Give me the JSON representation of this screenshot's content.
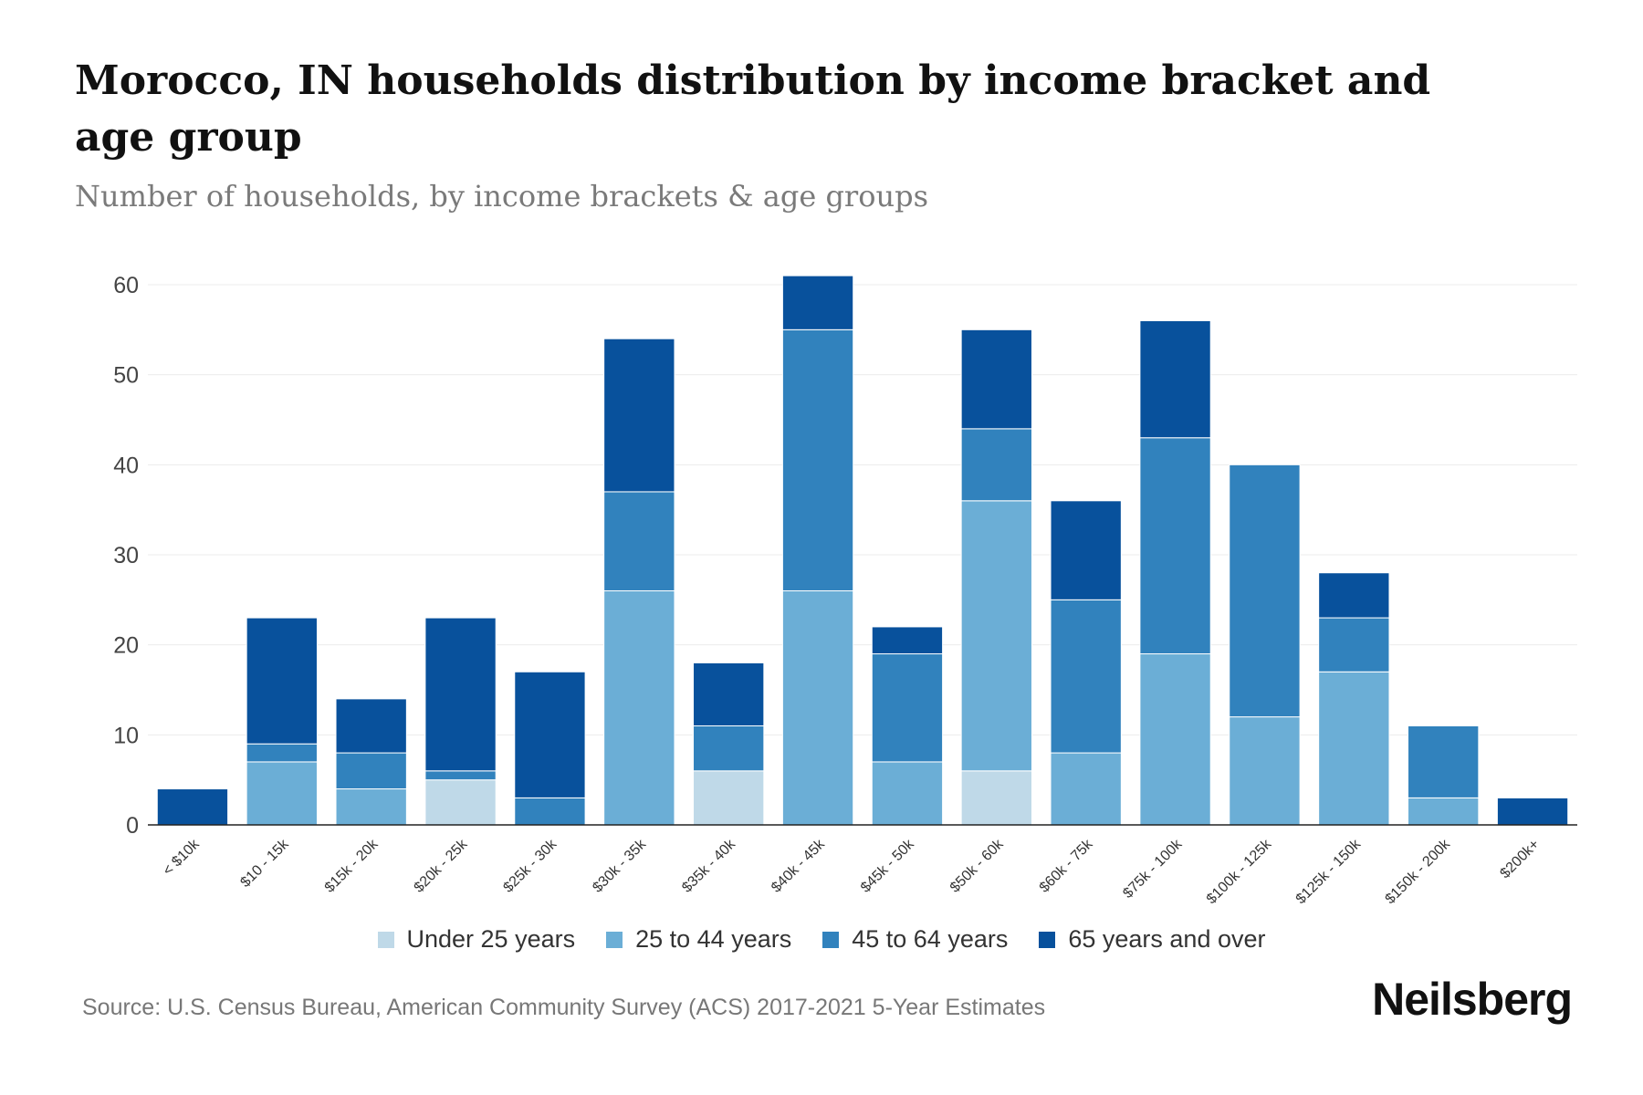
{
  "title": "Morocco, IN households distribution by income bracket and age group",
  "subtitle": "Number of households, by income brackets & age groups",
  "source": "Source: U.S. Census Bureau, American Community Survey (ACS) 2017-2021 5-Year Estimates",
  "brand": "Neilsberg",
  "chart_data": {
    "type": "bar",
    "stacked": true,
    "categories": [
      "< $10k",
      "$10 - 15k",
      "$15k - 20k",
      "$20k - 25k",
      "$25k - 30k",
      "$30k - 35k",
      "$35k - 40k",
      "$40k - 45k",
      "$45k - 50k",
      "$50k - 60k",
      "$60k - 75k",
      "$75k - 100k",
      "$100k - 125k",
      "$125k - 150k",
      "$150k - 200k",
      "$200k+"
    ],
    "series": [
      {
        "name": "Under 25 years",
        "color": "#bfd9e8",
        "values": [
          0,
          0,
          0,
          5,
          0,
          0,
          6,
          0,
          0,
          6,
          0,
          0,
          0,
          0,
          0,
          0
        ]
      },
      {
        "name": "25 to 44 years",
        "color": "#6baed6",
        "values": [
          0,
          7,
          4,
          0,
          0,
          26,
          0,
          26,
          7,
          30,
          8,
          19,
          12,
          17,
          3,
          0
        ]
      },
      {
        "name": "45 to 64 years",
        "color": "#3182bd",
        "values": [
          0,
          2,
          4,
          1,
          3,
          11,
          5,
          29,
          12,
          8,
          17,
          24,
          28,
          6,
          8,
          0
        ]
      },
      {
        "name": "65 years and over",
        "color": "#08519c",
        "values": [
          4,
          14,
          6,
          17,
          14,
          17,
          7,
          6,
          3,
          11,
          11,
          13,
          0,
          5,
          0,
          3
        ]
      }
    ],
    "yticks": [
      0,
      10,
      20,
      30,
      40,
      50,
      60
    ],
    "ylim": [
      0,
      60
    ],
    "xlabel": "",
    "ylabel": "",
    "grid": true,
    "legend": "bottom-center"
  }
}
